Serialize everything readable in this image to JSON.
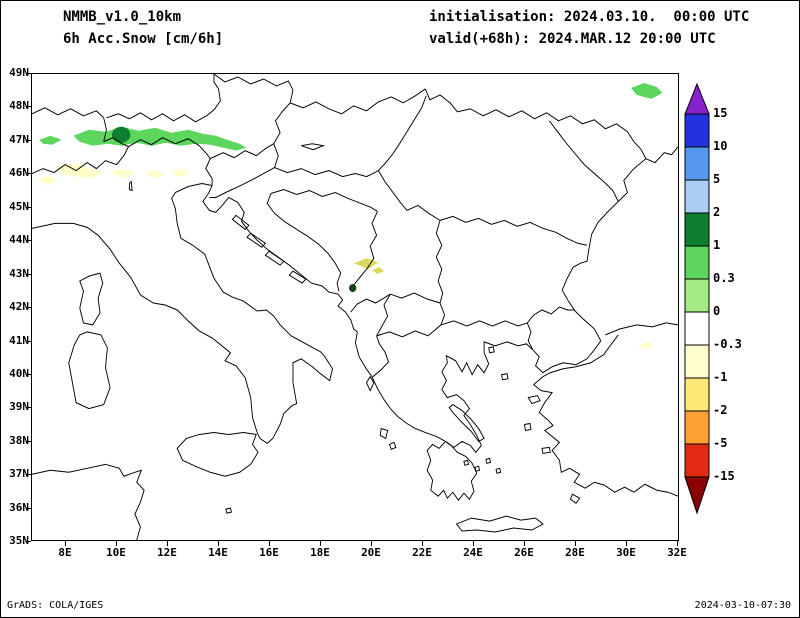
{
  "header": {
    "line1": "NMMB_v1.0_10km",
    "line2": "6h Acc.Snow [cm/6h]",
    "init": "initialisation: 2024.03.10.  00:00 UTC",
    "valid": "valid(+68h): 2024.MAR.12 20:00 UTC"
  },
  "footer": {
    "left": "GrADS: COLA/IGES",
    "right": "2024-03-10-07:30"
  },
  "axes": {
    "lat_labels": [
      "49N",
      "48N",
      "47N",
      "46N",
      "45N",
      "44N",
      "43N",
      "42N",
      "41N",
      "40N",
      "39N",
      "38N",
      "37N",
      "36N",
      "35N"
    ],
    "lon_labels": [
      "8E",
      "10E",
      "12E",
      "14E",
      "16E",
      "18E",
      "20E",
      "22E",
      "24E",
      "26E",
      "28E",
      "30E",
      "32E"
    ]
  },
  "colorbar": {
    "labels": [
      "15",
      "10",
      "5",
      "2",
      "1",
      "0.3",
      "0",
      "-0.3",
      "-1",
      "-2",
      "-5",
      "-15"
    ],
    "colors": [
      "#8822CC",
      "#2233DD",
      "#5599EE",
      "#AACCF5",
      "#0E7F2E",
      "#5CD65C",
      "#A3EC84",
      "#FFFFFF",
      "#FFFFCC",
      "#FFE878",
      "#FFA033",
      "#E22A12",
      "#8B0000"
    ]
  },
  "palette": {
    "snow_band": "#5CD65C",
    "snow_max": "#0E7F2E",
    "trace_negative": "#FFFFCC",
    "olive": "#DDD85E",
    "dark_spot": "#154515",
    "map_line": "#000000"
  },
  "chart_data": {
    "type": "heatmap",
    "title": "6h Acc.Snow [cm/6h]",
    "model": "NMMB_v1.0_10km",
    "initialisation": "2024.03.10. 00:00 UTC",
    "valid": "2024.MAR.12 20:00 UTC",
    "forecast_hour": "+68h",
    "units": "cm/6h",
    "x_axis": {
      "label": "longitude",
      "ticks": [
        "8E",
        "10E",
        "12E",
        "14E",
        "16E",
        "18E",
        "20E",
        "22E",
        "24E",
        "26E",
        "28E",
        "30E",
        "32E"
      ],
      "range_deg": [
        6.7,
        32
      ]
    },
    "y_axis": {
      "label": "latitude",
      "ticks": [
        "49N",
        "48N",
        "47N",
        "46N",
        "45N",
        "44N",
        "43N",
        "42N",
        "41N",
        "40N",
        "39N",
        "38N",
        "37N",
        "36N",
        "35N"
      ],
      "range_deg": [
        35,
        49
      ]
    },
    "levels": [
      15,
      10,
      5,
      2,
      1,
      0.3,
      0,
      -0.3,
      -1,
      -2,
      -5,
      -15
    ],
    "level_colors": [
      "#8822CC",
      "#2233DD",
      "#5599EE",
      "#AACCF5",
      "#0E7F2E",
      "#5CD65C",
      "#A3EC84",
      "#FFFFFF",
      "#FFFFCC",
      "#FFE878",
      "#FFA033",
      "#E22A12",
      "#8B0000"
    ],
    "grid": false,
    "legend_position": "right-vertical-colorbar",
    "shaded_regions": [
      {
        "area": "Alpine ridge 8.4E-15.2E, 46.8-47.4N",
        "value_bin": "0.3 to 1"
      },
      {
        "area": "Alps core 10.1E-10.9E, 46.9-47.3N",
        "value_bin": "1 to 2"
      },
      {
        "area": "Southern Alps 7.5E-12.5E, 45.8-46.3N",
        "value_bin": "-0.3 to -1"
      },
      {
        "area": "Northeast corner 30E-31.3E, 48.3-48.7N",
        "value_bin": "0.3 to 1"
      },
      {
        "area": "Montenegro highlands 19.3E-20.1E, 43.1-43.5N",
        "value_bin": "-1 to -2"
      },
      {
        "area": "Small dark spot ~19.2E, 42.6N",
        "value_bin": "2 to 5 (local spot)"
      }
    ]
  }
}
